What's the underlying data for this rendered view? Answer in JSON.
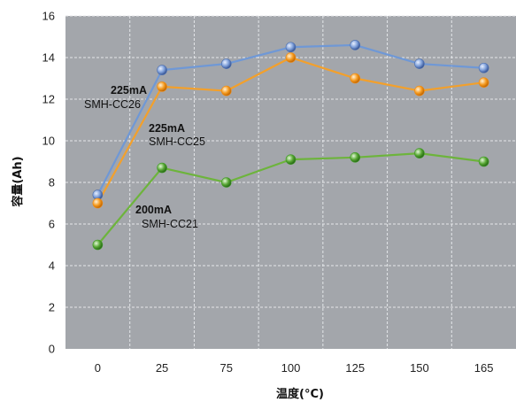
{
  "chart_data": {
    "type": "line",
    "xlabel": "温度(°C)",
    "ylabel": "容量(Ah)",
    "categories": [
      "0",
      "25",
      "75",
      "100",
      "125",
      "150",
      "165"
    ],
    "ylim": [
      0,
      16
    ],
    "yticks": [
      0,
      2,
      4,
      6,
      8,
      10,
      12,
      14,
      16
    ],
    "grid": true,
    "plot_background": "#a3a6ab",
    "grid_color": "#e4e6e9",
    "series": [
      {
        "name": "SMH-CC26",
        "current": "225mA",
        "color": "#6f98d6",
        "marker_color": "#4a6eb0",
        "values": [
          7.4,
          13.4,
          13.7,
          14.5,
          14.6,
          13.7,
          13.5
        ]
      },
      {
        "name": "SMH-CC25",
        "current": "225mA",
        "color": "#f3a02b",
        "marker_color": "#f08a10",
        "values": [
          7.0,
          12.6,
          12.4,
          14.0,
          13.0,
          12.4,
          12.8
        ]
      },
      {
        "name": "SMH-CC21",
        "current": "200mA",
        "color": "#6db43c",
        "marker_color": "#3f9a26",
        "values": [
          5.0,
          8.7,
          8.0,
          9.1,
          9.2,
          9.4,
          9.0
        ]
      }
    ]
  }
}
